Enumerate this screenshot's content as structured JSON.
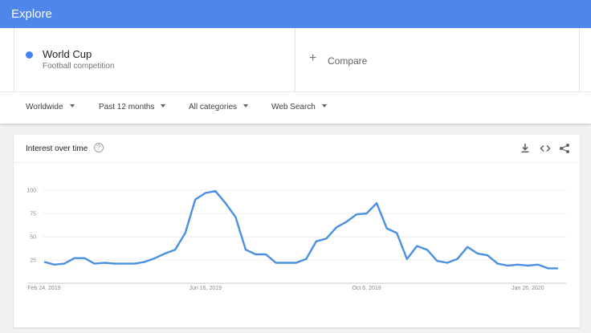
{
  "header": {
    "title": "Explore",
    "color": "#4f86ec"
  },
  "term": {
    "name": "World Cup",
    "subtitle": "Football competition",
    "dot_color": "#4285f4"
  },
  "compare": {
    "icon": "plus-icon",
    "plus": "+",
    "label": "Compare"
  },
  "filters": [
    {
      "label": "Worldwide"
    },
    {
      "label": "Past 12 months"
    },
    {
      "label": "All categories"
    },
    {
      "label": "Web Search"
    }
  ],
  "card": {
    "title": "Interest over time",
    "help_icon": "?",
    "tools": [
      "download-icon",
      "embed-icon",
      "share-icon"
    ]
  },
  "chart_data": {
    "type": "line",
    "title": "Interest over time",
    "ylim": [
      0,
      100
    ],
    "y_ticks": [
      25,
      50,
      75,
      100
    ],
    "x_ticks": [
      "Feb 24, 2019",
      "Jun 16, 2019",
      "Oct 6, 2019",
      "Jan 26, 2020"
    ],
    "grid": true,
    "line_color": "#4a90e2",
    "series": [
      {
        "values": [
          23,
          20,
          21,
          27,
          27,
          21,
          22,
          21,
          21,
          21,
          23,
          27,
          32,
          36,
          54,
          90,
          97,
          99,
          86,
          71,
          36,
          31,
          31,
          22,
          22,
          22,
          26,
          45,
          48,
          60,
          66,
          74,
          75,
          86,
          59,
          54,
          26,
          40,
          36,
          24,
          22,
          26,
          39,
          32,
          30,
          21,
          19,
          20,
          19,
          20,
          16,
          16
        ]
      }
    ]
  }
}
